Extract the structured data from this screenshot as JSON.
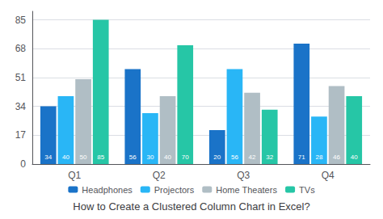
{
  "chart_data": {
    "type": "bar",
    "title": "How to Create a Clustered Column Chart in Excel?",
    "categories": [
      "Q1",
      "Q2",
      "Q3",
      "Q4"
    ],
    "series": [
      {
        "name": "Headphones",
        "color": "#1A73C8",
        "values": [
          34,
          56,
          20,
          71
        ]
      },
      {
        "name": "Projectors",
        "color": "#29B6F6",
        "values": [
          40,
          30,
          56,
          28
        ]
      },
      {
        "name": "Home Theaters",
        "color": "#B0BEC5",
        "values": [
          50,
          40,
          42,
          46
        ]
      },
      {
        "name": "TVs",
        "color": "#26C6A6",
        "values": [
          85,
          70,
          32,
          40
        ]
      }
    ],
    "ylim": [
      0,
      90
    ],
    "yticks": [
      0,
      17,
      34,
      51,
      68,
      85
    ],
    "grid": true,
    "legend": "bottom",
    "data_labels": true
  }
}
